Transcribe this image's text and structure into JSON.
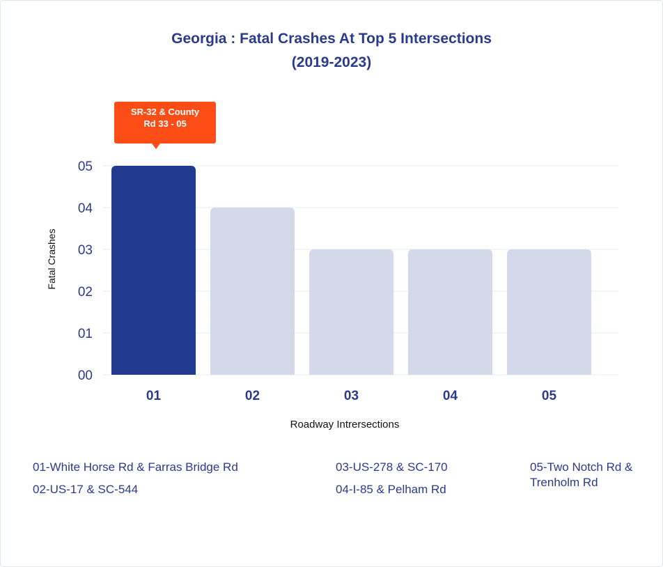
{
  "chart_data": {
    "type": "bar",
    "title": "Georgia : Fatal Crashes At Top 5 Intersections",
    "subtitle": "(2019-2023)",
    "xlabel": "Roadway Intrersections",
    "ylabel": "Fatal Crashes",
    "categories": [
      "01",
      "02",
      "03",
      "04",
      "05"
    ],
    "values": [
      5,
      4,
      3,
      3,
      3
    ],
    "ylim": [
      0,
      5
    ],
    "yticks": [
      "00",
      "01",
      "02",
      "03",
      "04",
      "05"
    ],
    "grid": true,
    "highlight_index": 0,
    "annotation": {
      "line1": "SR-32 & County",
      "line2": "Rd 33 - 05",
      "target_index": 0
    },
    "colors": {
      "highlight": "#213a8f",
      "bar": "#d4d9ea",
      "annotation": "#fc4d17",
      "text": "#2a3a8c",
      "grid": "#edf0f4"
    }
  },
  "legend": [
    "01-White Horse Rd & Farras Bridge Rd",
    "02-US-17 & SC-544",
    "03-US-278 & SC-170",
    "04-I-85 & Pelham Rd",
    "05-Two Notch Rd & Trenholm Rd"
  ]
}
